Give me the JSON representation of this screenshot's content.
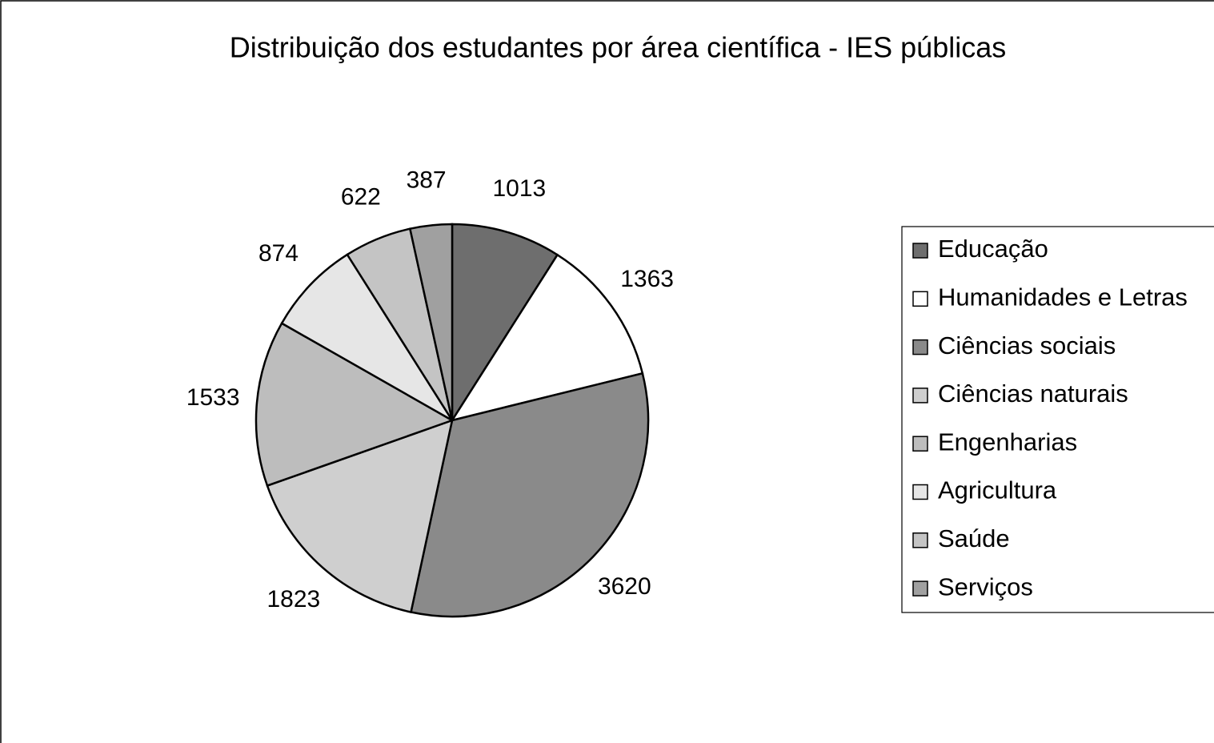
{
  "chart_data": {
    "type": "pie",
    "title": "Distribuição dos estudantes por área científica - IES públicas",
    "categories": [
      "Educação",
      "Humanidades e Letras",
      "Ciências sociais",
      "Ciências naturais",
      "Engenharias",
      "Agricultura",
      "Saúde",
      "Serviços"
    ],
    "values": [
      1013,
      1363,
      3620,
      1823,
      1533,
      874,
      622,
      387
    ],
    "colors": [
      "#6e6e6e",
      "#ffffff",
      "#8a8a8a",
      "#cfcfcf",
      "#bdbdbd",
      "#e6e6e6",
      "#c4c4c4",
      "#a0a0a0"
    ],
    "legend": "right"
  }
}
